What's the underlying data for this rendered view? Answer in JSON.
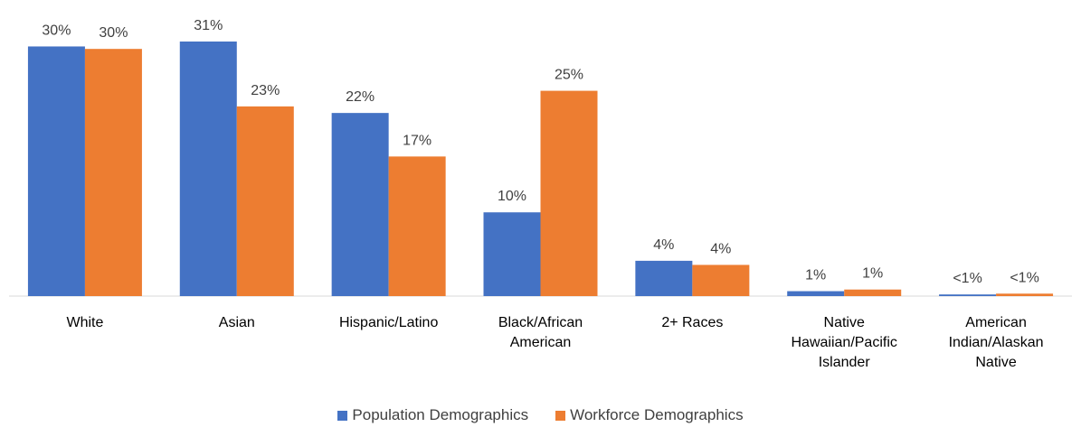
{
  "chart_data": {
    "type": "bar",
    "categories": [
      "White",
      "Asian",
      "Hispanic/Latino",
      "Black/African American",
      "2+ Races",
      "Native Hawaiian/Pacific Islander",
      "American Indian/Alaskan Native"
    ],
    "series": [
      {
        "name": "Population Demographics",
        "color": "#4472c4",
        "values": [
          30.4,
          31.0,
          22.3,
          10.2,
          4.3,
          0.6,
          0.2
        ],
        "value_labels": [
          "30%",
          "31%",
          "22%",
          "10%",
          "4%",
          "1%",
          "<1%"
        ]
      },
      {
        "name": "Workforce Demographics",
        "color": "#ed7d31",
        "values": [
          30.1,
          23.1,
          17.0,
          25.0,
          3.8,
          0.8,
          0.3
        ],
        "value_labels": [
          "30%",
          "23%",
          "17%",
          "25%",
          "4%",
          "1%",
          "<1%"
        ]
      }
    ],
    "legend": "bottom"
  }
}
